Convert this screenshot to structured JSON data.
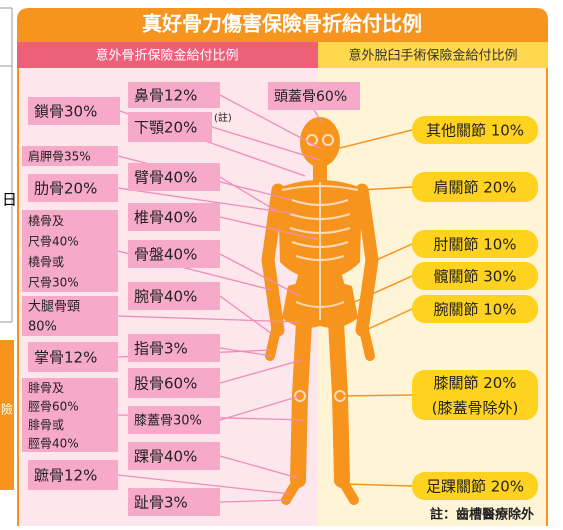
{
  "header": {
    "title": "真好骨力傷害保險骨折給付比例",
    "fracture_header": "意外骨折保險金給付比例",
    "dislocation_header": "意外脫臼手術保險金給付比例"
  },
  "fracture_labels": [
    {
      "lines": [
        "鎖骨30%"
      ]
    },
    {
      "lines": [
        "肩胛骨35%"
      ]
    },
    {
      "lines": [
        "肋骨20%"
      ]
    },
    {
      "lines": [
        "橈骨及",
        "尺骨40%",
        "橈骨或",
        "尺骨30%"
      ]
    },
    {
      "lines": [
        "大腿骨頸",
        "80%"
      ]
    },
    {
      "lines": [
        "掌骨12%"
      ]
    },
    {
      "lines": [
        "腓骨及",
        "脛骨60%",
        "腓骨或",
        "脛骨40%"
      ]
    },
    {
      "lines": [
        "蹠骨12%"
      ]
    },
    {
      "lines": [
        "鼻骨12%"
      ]
    },
    {
      "lines": [
        "下顎20%"
      ],
      "superscript": "(註)"
    },
    {
      "lines": [
        "臂骨40%"
      ]
    },
    {
      "lines": [
        "椎骨40%"
      ]
    },
    {
      "lines": [
        "骨盤40%"
      ]
    },
    {
      "lines": [
        "腕骨40%"
      ]
    },
    {
      "lines": [
        "指骨3%"
      ]
    },
    {
      "lines": [
        "股骨60%"
      ]
    },
    {
      "lines": [
        "膝蓋骨30%"
      ]
    },
    {
      "lines": [
        "踝骨40%"
      ]
    },
    {
      "lines": [
        "趾骨3%"
      ]
    },
    {
      "lines": [
        "頭蓋骨60%"
      ]
    }
  ],
  "dislocation_labels": [
    {
      "lines": [
        "其他關節 10%"
      ]
    },
    {
      "lines": [
        "肩關節 20%"
      ]
    },
    {
      "lines": [
        "肘關節 10%"
      ]
    },
    {
      "lines": [
        "髖關節 30%"
      ]
    },
    {
      "lines": [
        "腕關節 10%"
      ]
    },
    {
      "lines": [
        "膝關節 20%",
        "(膝蓋骨除外)"
      ]
    },
    {
      "lines": [
        "足踝關節 20%"
      ]
    }
  ],
  "note": "註：齒槽醫療除外",
  "edge_fragments": [
    "日",
    "險"
  ]
}
